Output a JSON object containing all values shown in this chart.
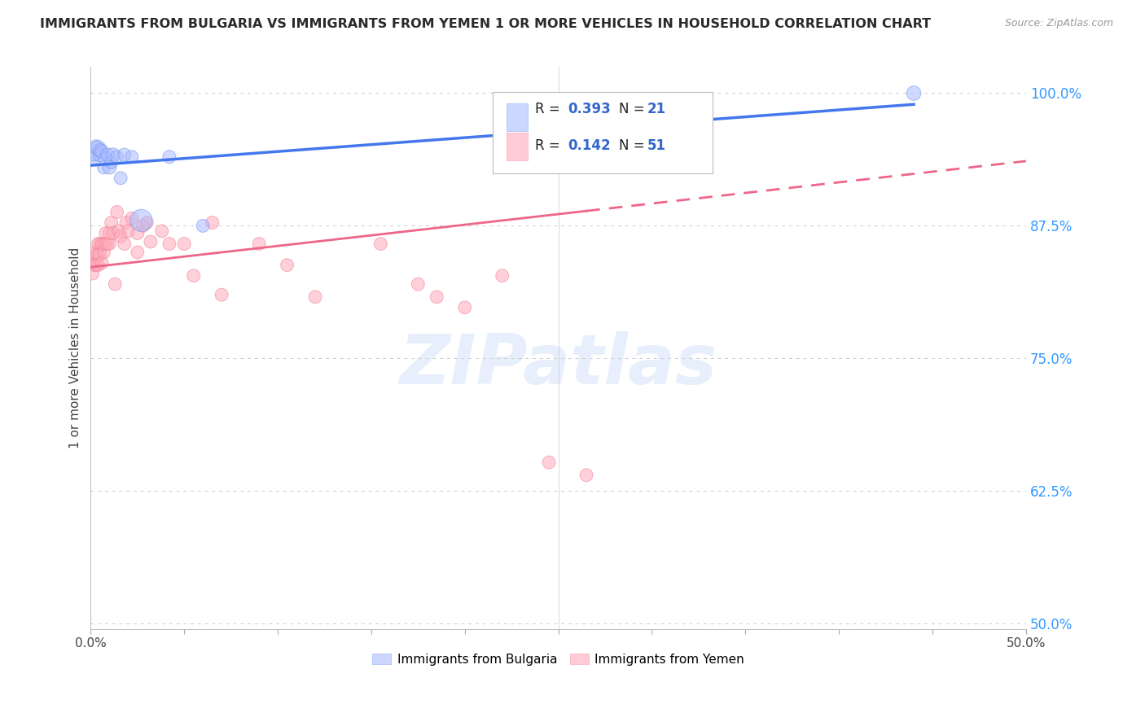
{
  "title": "IMMIGRANTS FROM BULGARIA VS IMMIGRANTS FROM YEMEN 1 OR MORE VEHICLES IN HOUSEHOLD CORRELATION CHART",
  "source": "Source: ZipAtlas.com",
  "ylabel": "1 or more Vehicles in Household",
  "xlim": [
    0.0,
    0.5
  ],
  "ylim": [
    0.495,
    1.025
  ],
  "yticks": [
    0.5,
    0.625,
    0.75,
    0.875,
    1.0
  ],
  "ytick_labels": [
    "50.0%",
    "62.5%",
    "75.0%",
    "87.5%",
    "100.0%"
  ],
  "xtick_positions": [
    0.0,
    0.05,
    0.1,
    0.15,
    0.2,
    0.25,
    0.3,
    0.35,
    0.4,
    0.45,
    0.5
  ],
  "bg_color": "#ffffff",
  "grid_color": "#cccccc",
  "watermark_text": "ZIPatlas",
  "bulgaria_color": "#aabbff",
  "bulgaria_edge": "#7799ee",
  "yemen_color": "#ffaabb",
  "yemen_edge": "#ee8899",
  "trend_bulgaria_color": "#4477ee",
  "trend_yemen_color": "#ee6688",
  "bulgaria_R": "0.393",
  "bulgaria_N": "21",
  "yemen_R": "0.142",
  "yemen_N": "51",
  "legend_color": "#3366cc",
  "bulgaria_x": [
    0.001,
    0.002,
    0.003,
    0.004,
    0.005,
    0.005,
    0.006,
    0.007,
    0.008,
    0.009,
    0.01,
    0.011,
    0.012,
    0.014,
    0.016,
    0.018,
    0.022,
    0.027,
    0.042,
    0.06,
    0.44
  ],
  "bulgaria_y": [
    0.938,
    0.942,
    0.95,
    0.948,
    0.942,
    0.946,
    0.945,
    0.93,
    0.938,
    0.942,
    0.93,
    0.935,
    0.942,
    0.94,
    0.92,
    0.942,
    0.94,
    0.88,
    0.94,
    0.875,
    1.0
  ],
  "bulgaria_sizes": [
    120,
    130,
    130,
    180,
    150,
    150,
    140,
    130,
    150,
    140,
    140,
    130,
    140,
    130,
    130,
    130,
    130,
    380,
    130,
    130,
    160
  ],
  "yemen_x": [
    0.001,
    0.001,
    0.002,
    0.002,
    0.003,
    0.003,
    0.004,
    0.004,
    0.004,
    0.005,
    0.005,
    0.006,
    0.006,
    0.007,
    0.007,
    0.008,
    0.008,
    0.009,
    0.01,
    0.01,
    0.011,
    0.012,
    0.013,
    0.014,
    0.015,
    0.016,
    0.018,
    0.019,
    0.02,
    0.022,
    0.025,
    0.025,
    0.028,
    0.03,
    0.032,
    0.038,
    0.042,
    0.05,
    0.055,
    0.065,
    0.07,
    0.09,
    0.105,
    0.12,
    0.155,
    0.175,
    0.185,
    0.2,
    0.22,
    0.245,
    0.265
  ],
  "yemen_y": [
    0.84,
    0.83,
    0.85,
    0.838,
    0.848,
    0.838,
    0.858,
    0.848,
    0.838,
    0.858,
    0.848,
    0.84,
    0.858,
    0.858,
    0.85,
    0.868,
    0.858,
    0.858,
    0.858,
    0.868,
    0.878,
    0.868,
    0.82,
    0.888,
    0.87,
    0.865,
    0.858,
    0.878,
    0.87,
    0.882,
    0.868,
    0.85,
    0.875,
    0.878,
    0.86,
    0.87,
    0.858,
    0.858,
    0.828,
    0.878,
    0.81,
    0.858,
    0.838,
    0.808,
    0.858,
    0.82,
    0.808,
    0.798,
    0.828,
    0.652,
    0.64
  ],
  "yemen_sizes": [
    130,
    130,
    130,
    130,
    130,
    130,
    130,
    130,
    130,
    130,
    130,
    130,
    130,
    130,
    130,
    130,
    130,
    130,
    130,
    130,
    130,
    130,
    130,
    130,
    130,
    130,
    130,
    130,
    130,
    130,
    130,
    130,
    130,
    130,
    130,
    130,
    130,
    130,
    130,
    130,
    130,
    130,
    130,
    130,
    130,
    130,
    130,
    130,
    130,
    130,
    130
  ]
}
